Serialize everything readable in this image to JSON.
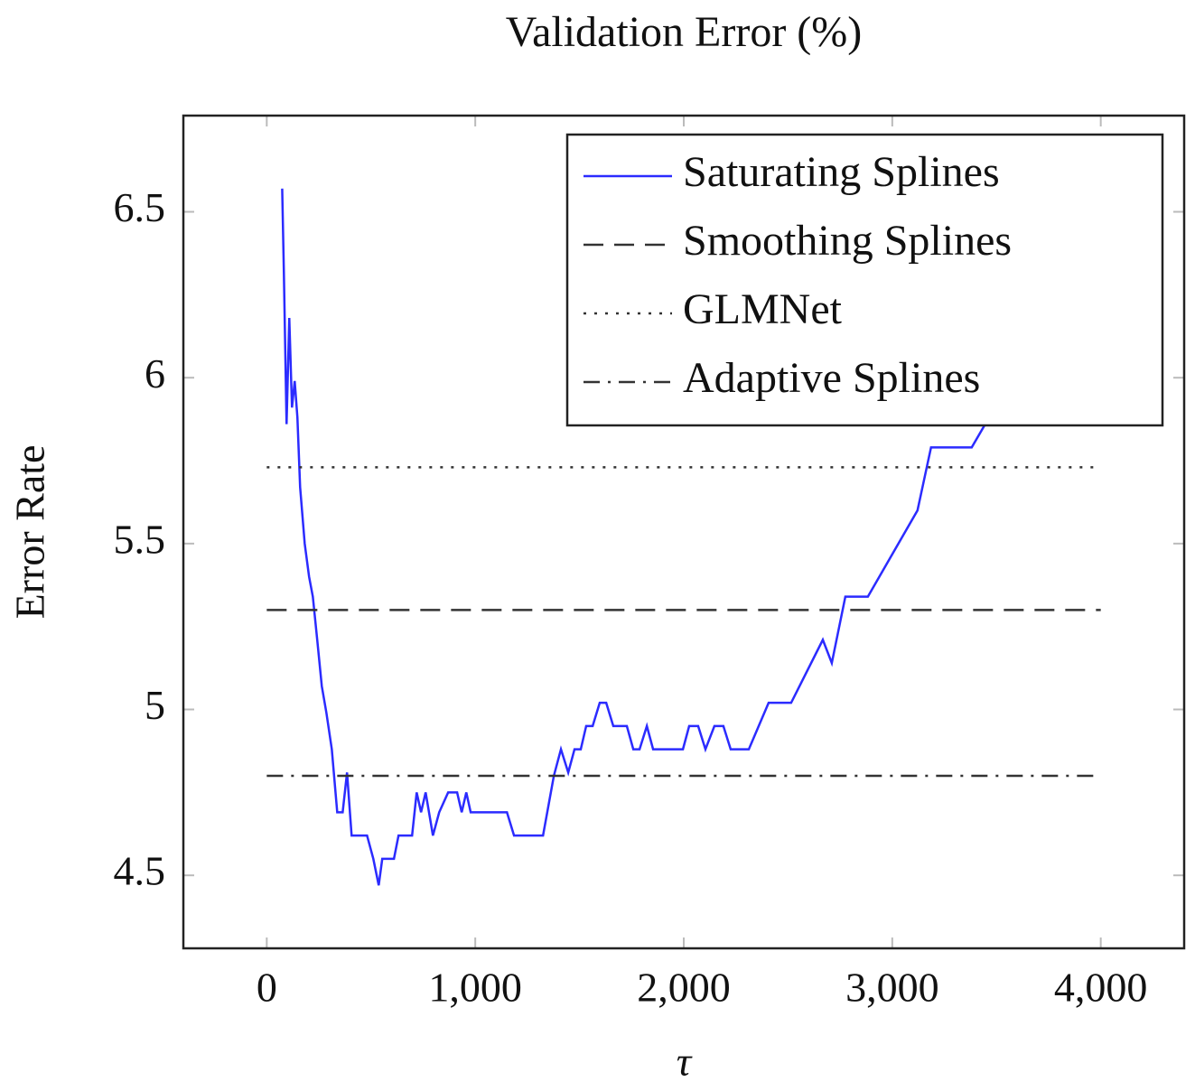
{
  "chart_data": {
    "type": "line",
    "title": "Validation Error (%)",
    "xlabel": "τ",
    "ylabel": "Error Rate",
    "xlim": [
      -400,
      4400
    ],
    "ylim": [
      4.28,
      6.79
    ],
    "xticks": [
      0,
      {
        "value": 1000,
        "label": "1,000"
      },
      {
        "value": 2000,
        "label": "2,000"
      },
      {
        "value": 3000,
        "label": "3,000"
      },
      {
        "value": 4000,
        "label": "4,000"
      }
    ],
    "yticks": [
      4.5,
      5,
      5.5,
      6,
      6.5
    ],
    "legend": "upper right",
    "series": [
      {
        "name": "Saturating Splines",
        "color": "#2b2bff",
        "dash": "solid",
        "x": [
          74,
          82,
          95,
          108,
          121,
          134,
          147,
          160,
          182,
          203,
          221,
          242,
          264,
          286,
          312,
          338,
          364,
          385,
          407,
          437,
          481,
          511,
          537,
          554,
          610,
          632,
          697,
          719,
          740,
          762,
          797,
          827,
          870,
          913,
          935,
          957,
          978,
          1152,
          1186,
          1325,
          1377,
          1411,
          1446,
          1476,
          1506,
          1532,
          1563,
          1597,
          1628,
          1662,
          1727,
          1758,
          1788,
          1823,
          1853,
          1996,
          2026,
          2069,
          2104,
          2147,
          2190,
          2225,
          2312,
          2407,
          2515,
          2667,
          2710,
          2775,
          2883,
          3121,
          3186,
          3381,
          3446,
          3470
        ],
        "values": [
          6.57,
          6.32,
          5.86,
          6.18,
          5.91,
          5.99,
          5.88,
          5.67,
          5.5,
          5.4,
          5.34,
          5.21,
          5.07,
          4.99,
          4.88,
          4.69,
          4.69,
          4.81,
          4.62,
          4.62,
          4.62,
          4.55,
          4.47,
          4.55,
          4.55,
          4.62,
          4.62,
          4.75,
          4.69,
          4.75,
          4.62,
          4.69,
          4.75,
          4.75,
          4.69,
          4.75,
          4.69,
          4.69,
          4.62,
          4.62,
          4.8,
          4.88,
          4.81,
          4.88,
          4.88,
          4.95,
          4.95,
          5.02,
          5.02,
          4.95,
          4.95,
          4.88,
          4.88,
          4.95,
          4.88,
          4.88,
          4.95,
          4.95,
          4.88,
          4.95,
          4.95,
          4.88,
          4.88,
          5.02,
          5.02,
          5.21,
          5.14,
          5.34,
          5.34,
          5.6,
          5.79,
          5.79,
          5.86,
          5.88
        ]
      },
      {
        "name": "Smoothing Splines",
        "color": "#333333",
        "dash": "dashed",
        "x": [
          0,
          4000
        ],
        "values": [
          5.3,
          5.3
        ]
      },
      {
        "name": "GLMNet",
        "color": "#333333",
        "dash": "dotted",
        "x": [
          0,
          4000
        ],
        "values": [
          5.73,
          5.73
        ]
      },
      {
        "name": "Adaptive Splines",
        "color": "#333333",
        "dash": "dashdot",
        "x": [
          0,
          4000
        ],
        "values": [
          4.8,
          4.8
        ]
      }
    ]
  }
}
